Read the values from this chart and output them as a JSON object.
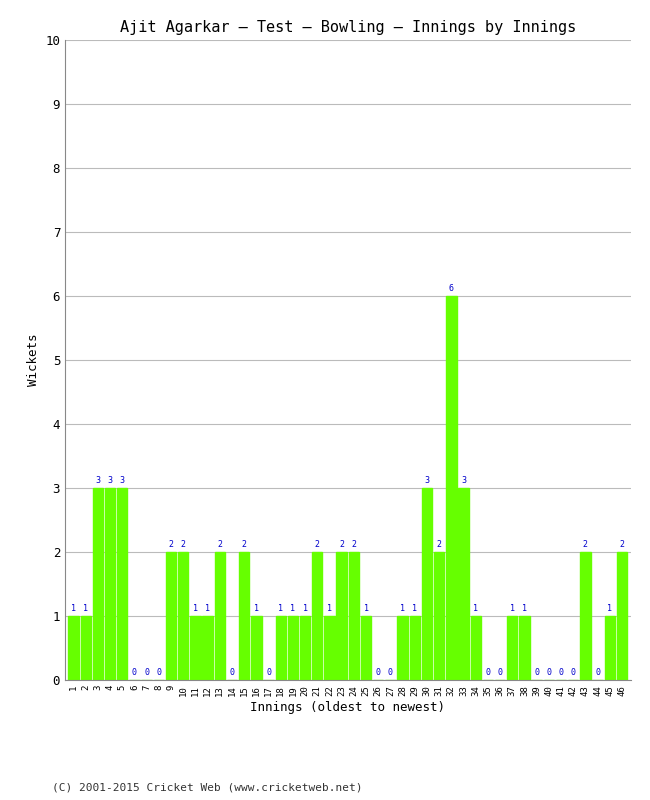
{
  "title": "Ajit Agarkar – Test – Bowling – Innings by Innings",
  "xlabel": "Innings (oldest to newest)",
  "ylabel": "Wickets",
  "ylim": [
    0,
    10
  ],
  "yticks": [
    0,
    1,
    2,
    3,
    4,
    5,
    6,
    7,
    8,
    9,
    10
  ],
  "bar_color": "#66ff00",
  "label_color": "#0000cc",
  "background_color": "#ffffff",
  "footer": "(C) 2001-2015 Cricket Web (www.cricketweb.net)",
  "innings": [
    1,
    2,
    3,
    4,
    5,
    6,
    7,
    8,
    9,
    10,
    11,
    12,
    13,
    14,
    15,
    16,
    17,
    18,
    19,
    20,
    21,
    22,
    23,
    24,
    25,
    26,
    27,
    28,
    29,
    30,
    31,
    32,
    33,
    34,
    35,
    36,
    37,
    38,
    39,
    40,
    41,
    42,
    43,
    44,
    45,
    46
  ],
  "wickets": [
    1,
    1,
    3,
    3,
    3,
    0,
    0,
    0,
    2,
    2,
    1,
    1,
    2,
    0,
    2,
    1,
    0,
    1,
    1,
    1,
    2,
    1,
    2,
    2,
    1,
    0,
    0,
    1,
    1,
    3,
    2,
    6,
    3,
    1,
    0,
    0,
    1,
    1,
    0,
    0,
    0,
    0,
    2,
    0,
    1,
    2
  ]
}
